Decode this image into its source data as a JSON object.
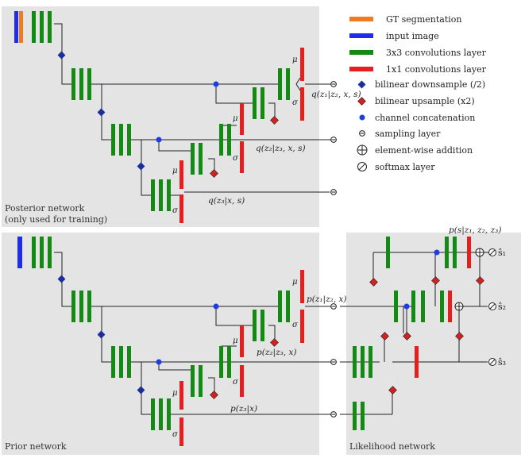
{
  "colors": {
    "panel_bg": "#e4e4e4",
    "gt": "#f07a1e",
    "input": "#1f2ee6",
    "conv3": "#138a13",
    "conv1": "#e61e1e",
    "down": "#1c2e99",
    "up": "#d42020",
    "concat": "#1f3de6",
    "line": "#222222"
  },
  "legend": [
    {
      "icon": "gt-swatch",
      "label": "GT segmentation"
    },
    {
      "icon": "input-swatch",
      "label": "input image"
    },
    {
      "icon": "conv3-swatch",
      "label": "3x3 convolutions layer"
    },
    {
      "icon": "conv1-swatch",
      "label": "1x1 convolutions layer"
    },
    {
      "icon": "blue-diamond-icon",
      "label": "bilinear downsample (/2)"
    },
    {
      "icon": "red-diamond-icon",
      "label": "bilinear upsample (x2)"
    },
    {
      "icon": "blue-dot-icon",
      "label": "channel concatenation"
    },
    {
      "icon": "sampling-icon",
      "label": "sampling layer"
    },
    {
      "icon": "oplus-icon",
      "label": "element-wise addition"
    },
    {
      "icon": "oslash-icon",
      "label": "softmax layer"
    }
  ],
  "posterior": {
    "title_line1": "Posterior network",
    "title_line2": "(only used for training)",
    "q1": "q(z₁|z₂, x, s)",
    "q2": "q(z₂|z₃, x, s)",
    "q3": "q(z₃|x, s)"
  },
  "prior": {
    "title": "Prior network",
    "p1": "p(z₁|z₂, x)",
    "p2": "p(z₂|z₃, x)",
    "p3": "p(z₃|x)"
  },
  "likelihood": {
    "title": "Likelihood network",
    "top": "p(s|z₁, z₂, z₃)",
    "s1": "ŝ₁",
    "s2": "ŝ₂",
    "s3": "ŝ₃"
  },
  "greek": {
    "mu": "μ",
    "sigma": "σ"
  }
}
